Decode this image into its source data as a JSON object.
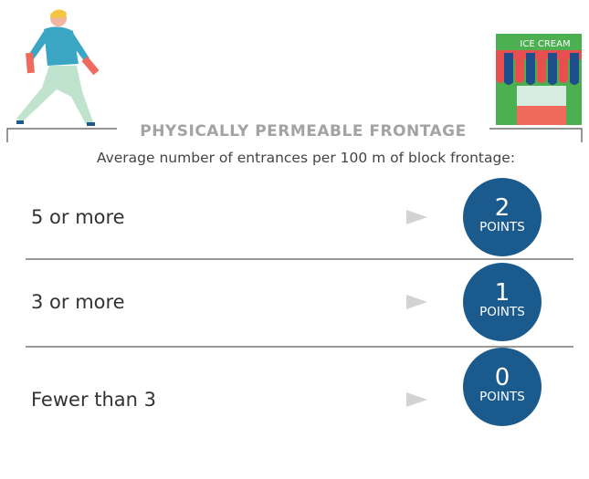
{
  "header": {
    "title": "PHYSICALLY PERMEABLE FRONTAGE",
    "subtitle": "Average number of entrances per 100 m of block frontage:"
  },
  "illustration": {
    "sign": "ICE CREAM"
  },
  "rows": [
    {
      "condition": "5 or more",
      "points": "2",
      "unit": "POINTS"
    },
    {
      "condition": "3 or more",
      "points": "1",
      "unit": "POINTS"
    },
    {
      "condition": "Fewer than 3",
      "points": "0",
      "unit": "POINTS"
    }
  ]
}
